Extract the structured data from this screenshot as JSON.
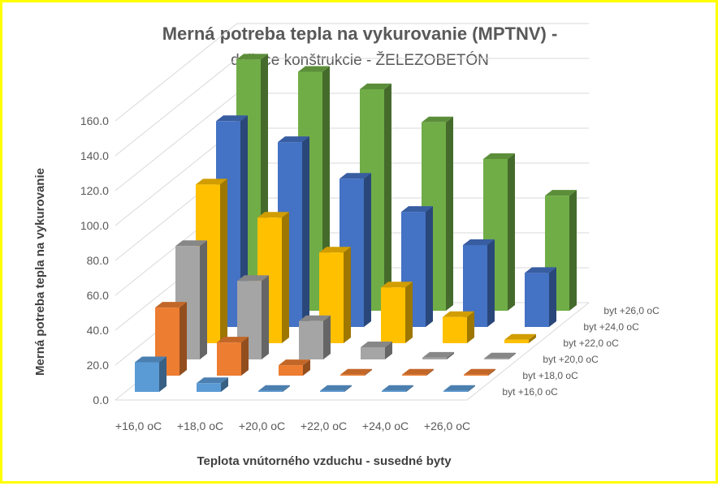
{
  "chart_data": {
    "type": "bar",
    "variant": "3d-column",
    "title": "Merná potreba tepla na vykurovanie (MPTNV) -",
    "subtitle": "deliace konštrukcie - ŽELEZOBETÓN",
    "xlabel": "Teplota vnútorného vzduchu - susedné byty",
    "ylabel": "Merná potreba tepla na vykurovanie",
    "ylim": [
      0,
      160
    ],
    "yticks": [
      "0.0",
      "20.0",
      "40.0",
      "60.0",
      "80.0",
      "100.0",
      "120.0",
      "140.0",
      "160.0"
    ],
    "grid": true,
    "categories": [
      "+16,0 oC",
      "+18,0 oC",
      "+20,0 oC",
      "+22,0 oC",
      "+24,0 oC",
      "+26,0 oC"
    ],
    "series": [
      {
        "name": "byt +16,0 oC",
        "color": "#5b9bd5",
        "values": [
          17,
          5,
          0,
          0,
          0,
          0
        ]
      },
      {
        "name": "byt +18,0 oC",
        "color": "#ed7d31",
        "values": [
          39,
          19,
          6,
          0,
          0,
          0
        ]
      },
      {
        "name": "byt +20,0 oC",
        "color": "#a5a5a5",
        "values": [
          65,
          45,
          22,
          7,
          1,
          0
        ]
      },
      {
        "name": "byt +22,0 oC",
        "color": "#ffc000",
        "values": [
          91,
          72,
          52,
          32,
          15,
          2
        ]
      },
      {
        "name": "byt +24,0 oC",
        "color": "#4472c4",
        "values": [
          118,
          106,
          85,
          66,
          47,
          31
        ]
      },
      {
        "name": "byt +26,0 oC",
        "color": "#70ad47",
        "values": [
          144,
          137,
          127,
          108,
          87,
          66
        ]
      }
    ]
  }
}
